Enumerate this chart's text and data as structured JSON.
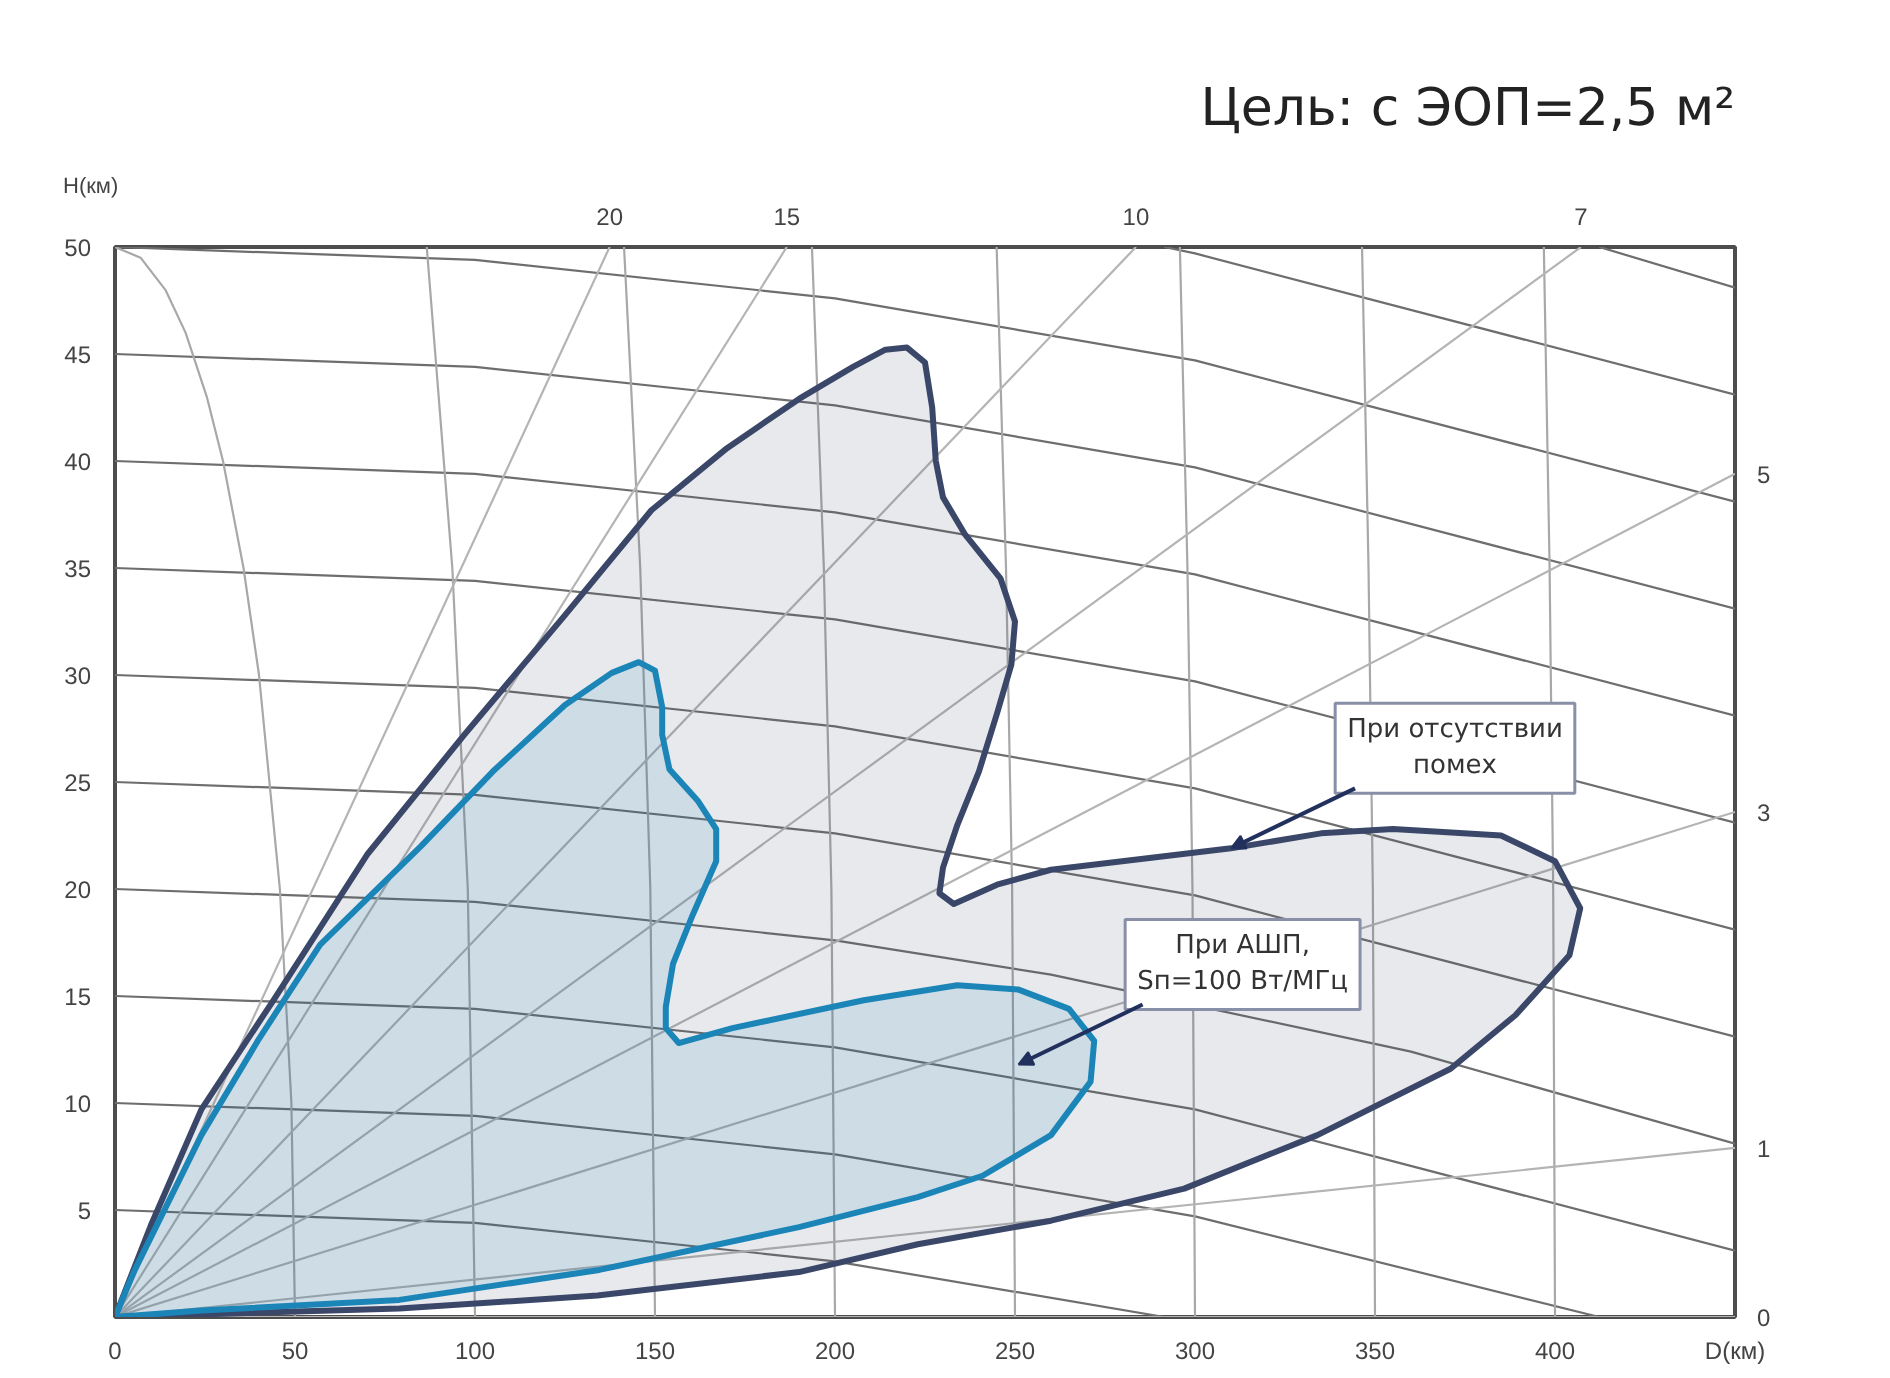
{
  "chart_data": {
    "type": "area",
    "title": "Цель: с ЭОП=2,5 м²",
    "xlabel": "D(км)",
    "ylabel": "H(км)",
    "xlim": [
      0,
      450
    ],
    "ylim": [
      0,
      50
    ],
    "xticks": [
      0,
      50,
      100,
      150,
      200,
      250,
      300,
      350,
      400
    ],
    "yticks": [
      5,
      10,
      15,
      20,
      25,
      30,
      35,
      40,
      45,
      50
    ],
    "annotations": [
      {
        "text": "При отсутствии\nпомех",
        "x": 310,
        "y": 21.9
      },
      {
        "text": "При АШП,\nSп=100 Вт/МГц",
        "x": 251,
        "y": 11.8
      }
    ],
    "series": [
      {
        "type": "line",
        "color": "#6e6e6e",
        "x": [
          0,
          100,
          200,
          291.5
        ],
        "values": [
          5,
          4.4,
          2.6,
          0
        ]
      },
      {
        "type": "line",
        "color": "#6e6e6e",
        "x": [
          0,
          100,
          200,
          300,
          412.3
        ],
        "values": [
          10,
          9.4,
          7.6,
          4.7,
          0
        ]
      },
      {
        "type": "line",
        "color": "#6e6e6e",
        "x": [
          0,
          100,
          200,
          300,
          450
        ],
        "values": [
          15,
          14.4,
          12.6,
          9.7,
          3.1
        ]
      },
      {
        "type": "line",
        "color": "#6e6e6e",
        "x": [
          0,
          100,
          200,
          260,
          360,
          450
        ],
        "values": [
          20,
          19.4,
          17.6,
          16.0,
          12.4,
          8.1
        ]
      },
      {
        "type": "line",
        "color": "#6e6e6e",
        "x": [
          0,
          100,
          200,
          300,
          450
        ],
        "values": [
          25,
          24.4,
          22.6,
          19.7,
          13.1
        ]
      },
      {
        "type": "line",
        "color": "#6e6e6e",
        "x": [
          0,
          100,
          200,
          300,
          450
        ],
        "values": [
          30,
          29.4,
          27.6,
          24.7,
          18.1
        ]
      },
      {
        "type": "line",
        "color": "#6e6e6e",
        "x": [
          0,
          100,
          200,
          300,
          450
        ],
        "values": [
          35,
          34.4,
          32.6,
          29.7,
          23.1
        ]
      },
      {
        "type": "line",
        "color": "#6e6e6e",
        "x": [
          0,
          100,
          200,
          300,
          450
        ],
        "values": [
          40,
          39.4,
          37.6,
          34.7,
          28.1
        ]
      },
      {
        "type": "line",
        "color": "#6e6e6e",
        "x": [
          0,
          100,
          200,
          300,
          450
        ],
        "values": [
          45,
          44.4,
          42.6,
          39.7,
          33.1
        ]
      },
      {
        "type": "line",
        "color": "#6e6e6e",
        "x": [
          0,
          100,
          200,
          300,
          450
        ],
        "values": [
          50,
          49.4,
          47.6,
          44.7,
          38.1
        ]
      },
      {
        "type": "line",
        "color": "#6e6e6e",
        "x": [
          291.5,
          300,
          450
        ],
        "values": [
          50,
          49.7,
          43.1
        ]
      },
      {
        "type": "line",
        "color": "#6e6e6e",
        "x": [
          412.3,
          450
        ],
        "values": [
          50,
          48.1
        ]
      },
      {
        "type": "line",
        "color": "#a8a8a8",
        "x": [
          50,
          49.0,
          45.8,
          40,
          35.7,
          30,
          25.5,
          19.6,
          14,
          7.1,
          0
        ],
        "values": [
          0,
          10,
          20,
          30,
          35,
          40,
          43,
          46,
          48,
          49.5,
          50
        ]
      },
      {
        "type": "line",
        "color": "#a8a8a8",
        "x": [
          100,
          98.0,
          93.7,
          86.6
        ],
        "values": [
          0,
          20,
          35,
          50
        ]
      },
      {
        "type": "line",
        "color": "#a8a8a8",
        "x": [
          150,
          148.7,
          145.9,
          141.4
        ],
        "values": [
          0,
          20,
          35,
          50
        ]
      },
      {
        "type": "line",
        "color": "#a8a8a8",
        "x": [
          200,
          199.0,
          196.9,
          193.6
        ],
        "values": [
          0,
          20,
          35,
          50
        ]
      },
      {
        "type": "line",
        "color": "#a8a8a8",
        "x": [
          250,
          249.2,
          247.5,
          244.9
        ],
        "values": [
          0,
          20,
          35,
          50
        ]
      },
      {
        "type": "line",
        "color": "#a8a8a8",
        "x": [
          300,
          299.3,
          297.9,
          295.8
        ],
        "values": [
          0,
          20,
          35,
          50
        ]
      },
      {
        "type": "line",
        "color": "#a8a8a8",
        "x": [
          350,
          349.4,
          348.2,
          346.4
        ],
        "values": [
          0,
          20,
          35,
          50
        ]
      },
      {
        "type": "line",
        "color": "#a8a8a8",
        "x": [
          400,
          399.5,
          398.5,
          396.9
        ],
        "values": [
          0,
          20,
          35,
          50
        ]
      },
      {
        "type": "line",
        "name": "20",
        "color": "#b4b4b4",
        "x": [
          0,
          137.4
        ],
        "values": [
          0,
          50
        ]
      },
      {
        "type": "line",
        "name": "15",
        "color": "#b4b4b4",
        "x": [
          0,
          186.6
        ],
        "values": [
          0,
          50
        ]
      },
      {
        "type": "line",
        "name": "10",
        "color": "#b4b4b4",
        "x": [
          0,
          283.6
        ],
        "values": [
          0,
          50
        ]
      },
      {
        "type": "line",
        "name": "7",
        "color": "#b4b4b4",
        "x": [
          0,
          407.2
        ],
        "values": [
          0,
          50
        ]
      },
      {
        "type": "line",
        "name": "5",
        "color": "#b4b4b4",
        "x": [
          0,
          450
        ],
        "values": [
          0,
          39.4
        ]
      },
      {
        "type": "line",
        "name": "3",
        "color": "#b4b4b4",
        "x": [
          0,
          450
        ],
        "values": [
          0,
          23.6
        ]
      },
      {
        "type": "line",
        "name": "1",
        "color": "#b4b4b4",
        "x": [
          0,
          450
        ],
        "values": [
          0,
          7.9
        ]
      },
      {
        "type": "line",
        "name": "0",
        "color": "#b4b4b4",
        "x": [
          0,
          450
        ],
        "values": [
          0,
          0
        ]
      },
      {
        "color": "#3b4769",
        "x": [
          0,
          10,
          24,
          44,
          70,
          97,
          125,
          149,
          170,
          190,
          205,
          214,
          220,
          225,
          227,
          228,
          230,
          236,
          246,
          250,
          249,
          245,
          240,
          234,
          230,
          229,
          233,
          245,
          260,
          285,
          310,
          335,
          355,
          385,
          400,
          407,
          404,
          389,
          371,
          334,
          297,
          260,
          223,
          190,
          134,
          79,
          0
        ],
        "values": [
          0,
          4.3,
          9.7,
          14.8,
          21.6,
          27.2,
          32.8,
          37.7,
          40.6,
          42.9,
          44.4,
          45.2,
          45.3,
          44.6,
          42.5,
          40,
          38.3,
          36.6,
          34.5,
          32.5,
          30.5,
          28.2,
          25.5,
          23,
          21,
          19.8,
          19.3,
          20.2,
          20.9,
          21.4,
          21.9,
          22.6,
          22.8,
          22.5,
          21.3,
          19.1,
          16.9,
          14.1,
          11.6,
          8.5,
          6,
          4.5,
          3.4,
          2.1,
          1,
          0.4,
          0
        ]
      },
      {
        "color": "#1b85b8",
        "x": [
          0,
          5.5,
          24,
          40,
          57,
          85,
          105,
          125,
          138,
          145.5,
          150,
          152,
          152,
          154,
          162,
          167,
          167,
          160.5,
          155,
          153,
          153,
          156.6,
          171.5,
          208,
          234,
          251,
          265,
          272,
          271,
          260,
          241,
          223,
          190,
          134.5,
          79,
          24,
          0
        ],
        "values": [
          0,
          2.2,
          8.5,
          13,
          17.4,
          22,
          25.5,
          28.6,
          30.1,
          30.6,
          30.2,
          28.5,
          27.2,
          25.6,
          24.1,
          22.8,
          21.3,
          18.8,
          16.5,
          14.5,
          13.5,
          12.8,
          13.5,
          14.8,
          15.5,
          15.3,
          14.4,
          12.9,
          11,
          8.5,
          6.6,
          5.6,
          4.2,
          2.2,
          0.8,
          0.3,
          0
        ]
      }
    ]
  }
}
